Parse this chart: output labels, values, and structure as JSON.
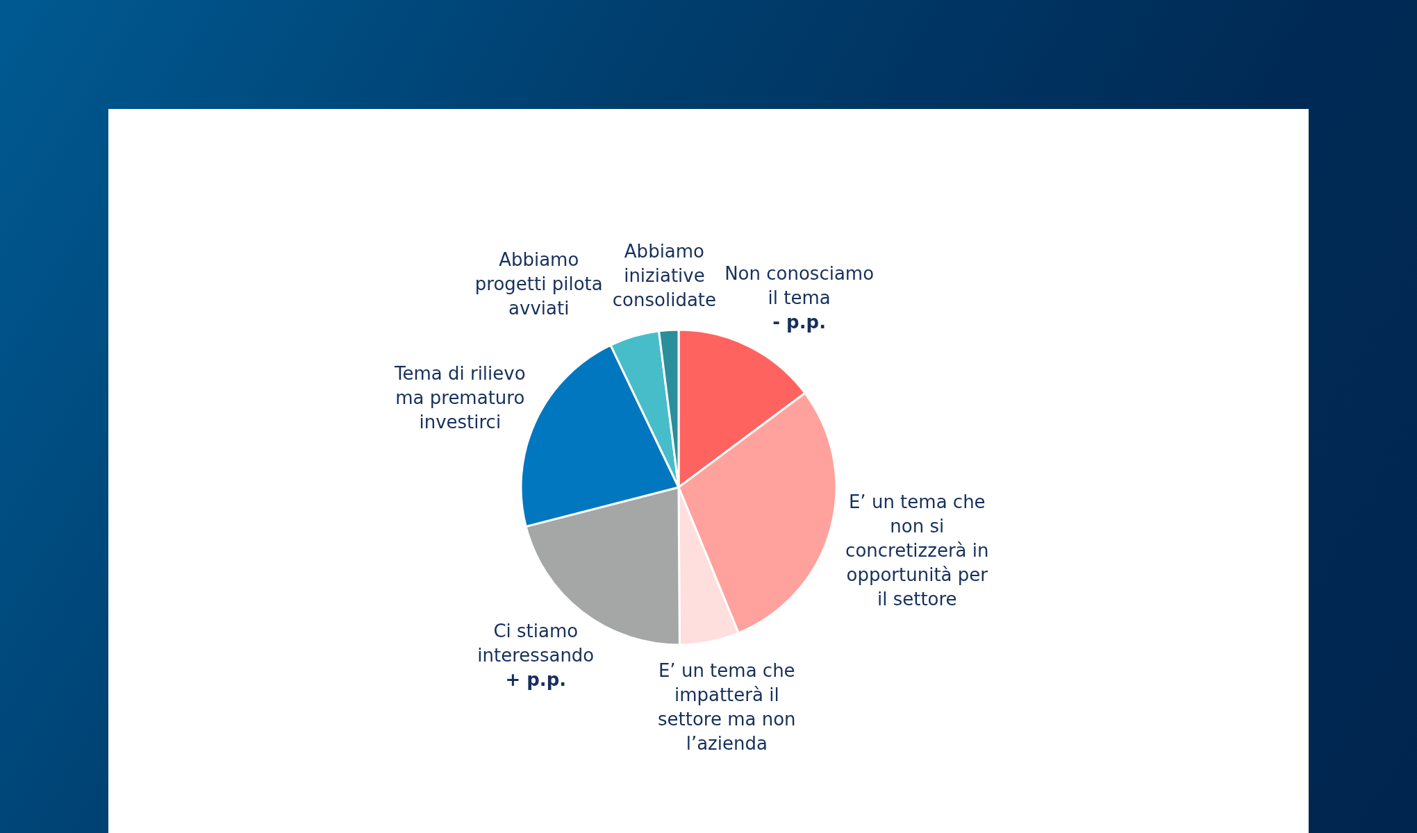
{
  "chart_data": {
    "type": "pie",
    "categories": [
      "Non conosciamo il tema",
      "E’ un tema che non si concretizzerà in opportunità per il settore",
      "E’ un tema che impatterà il settore ma non l’azienda",
      "Ci stiamo interessando",
      "Tema di rilievo ma prematuro investirci",
      "Abbiamo progetti pilota avviati",
      "Abbiamo iniziative consolidate"
    ],
    "values": [
      14.8,
      29.0,
      6.1,
      21.1,
      21.9,
      5.1,
      2.0
    ],
    "colors": [
      "#ff6360",
      "#ffa29d",
      "#ffdede",
      "#a5a6a6",
      "#0077be",
      "#47bdca",
      "#2a8f9b"
    ],
    "value_labels": [
      "- p.p.",
      null,
      null,
      "+ p.p.",
      null,
      null,
      null
    ]
  }
}
